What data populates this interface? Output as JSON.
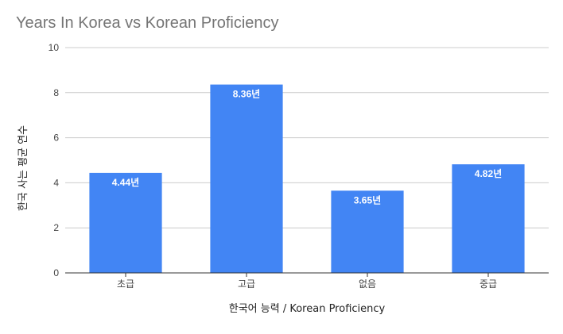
{
  "chart_data": {
    "type": "bar",
    "title": "Years In Korea vs Korean Proficiency",
    "xlabel": "한국어 능력 / Korean Proficiency",
    "ylabel": "한국 사는 평균 연수",
    "categories": [
      "초급",
      "고급",
      "없음",
      "중급"
    ],
    "values": [
      4.44,
      8.36,
      3.65,
      4.82
    ],
    "data_labels": [
      "4.44년",
      "8.36년",
      "3.65년",
      "4.82년"
    ],
    "ylim": [
      0,
      10
    ],
    "yticks": [
      "0",
      "2",
      "4",
      "6",
      "8",
      "10"
    ],
    "grid": true,
    "legend": "none",
    "bar_color": "#4285f4",
    "grid_color": "#cccccc",
    "axis_color": "#333333"
  }
}
